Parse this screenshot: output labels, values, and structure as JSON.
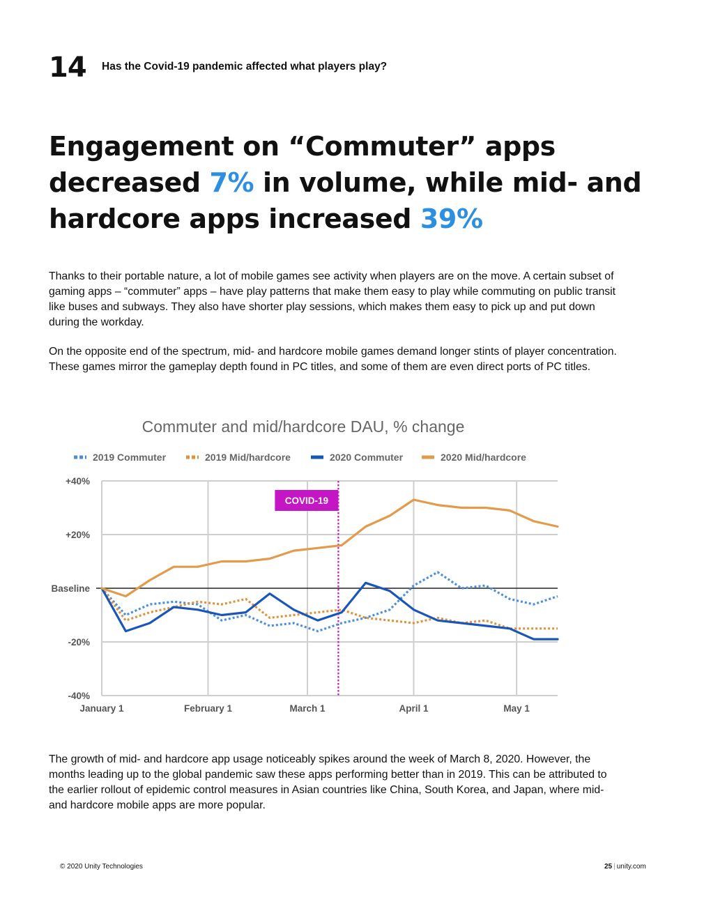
{
  "header": {
    "section_number": "14",
    "section_title": "Has the Covid-19 pandemic affected what players play?"
  },
  "headline": {
    "part1": "Engagement on “Commuter” apps decreased ",
    "highlight1": "7%",
    "part2": " in volume, while mid- and hardcore apps increased ",
    "highlight2": "39%",
    "highlight_color": "#2d8fe0"
  },
  "body": {
    "paragraph1": "Thanks to their portable nature, a lot of mobile games see activity when players are on the move. A certain subset of gaming apps – “commuter” apps – have play patterns that make them easy to play while commuting on public transit like buses and subways. They also have shorter play sessions, which makes them easy to pick up and put down during the workday.",
    "paragraph2": "On the opposite end of the spectrum, mid- and hardcore mobile games demand longer stints of player concentration. These games mirror the gameplay depth found in PC titles, and some of them are even direct ports of PC titles.",
    "paragraph3": "The growth of mid- and hardcore app usage noticeably spikes around the week of March 8, 2020. However, the months leading up to the global pandemic saw these apps performing better than in 2019. This can be attributed to the earlier rollout of epidemic control measures in Asian countries like China, South Korea, and Japan, where mid- and hardcore mobile apps are more popular."
  },
  "chart_data": {
    "type": "line",
    "title": "Commuter and mid/hardcore DAU, % change",
    "xlabel": "",
    "ylabel": "",
    "x": [
      0,
      1,
      2,
      3,
      4,
      5,
      6,
      7,
      8,
      9,
      10,
      11,
      12,
      13,
      14,
      15,
      16,
      17,
      18,
      19
    ],
    "x_unit": "week (starting January 1, 2020)",
    "xlim": [
      0,
      19
    ],
    "xticks": [
      {
        "x": 0,
        "label": "January 1"
      },
      {
        "x": 4.43,
        "label": "February 1"
      },
      {
        "x": 8.57,
        "label": "March 1"
      },
      {
        "x": 13,
        "label": "April 1"
      },
      {
        "x": 17.29,
        "label": "May 1"
      }
    ],
    "ylim": [
      -40,
      40
    ],
    "yticks": [
      {
        "y": 40,
        "label": "+40%"
      },
      {
        "y": 20,
        "label": "+20%"
      },
      {
        "y": 0,
        "label": "Baseline"
      },
      {
        "y": -20,
        "label": "-20%"
      },
      {
        "y": -40,
        "label": "-40%"
      }
    ],
    "grid": true,
    "legend_position": "top",
    "series": [
      {
        "name": "2019 Commuter",
        "color": "#4a8fde",
        "dash": "dotted",
        "values": [
          0,
          -10,
          -6,
          -5,
          -6,
          -12,
          -10,
          -14,
          -13,
          -16,
          -13,
          -11,
          -8,
          1,
          6,
          0,
          1,
          -4,
          -6,
          -3
        ]
      },
      {
        "name": "2019 Mid/hardcore",
        "color": "#e0923a",
        "dash": "dotted",
        "values": [
          0,
          -12,
          -9,
          -7,
          -5,
          -6,
          -4,
          -11,
          -10,
          -9,
          -8,
          -11,
          -12,
          -13,
          -11,
          -13,
          -12,
          -15,
          -15,
          -15
        ]
      },
      {
        "name": "2020 Commuter",
        "color": "#1a56b8",
        "dash": "solid",
        "values": [
          0,
          -16,
          -13,
          -7,
          -8,
          -10,
          -9,
          -2,
          -8,
          -12,
          -9,
          2,
          -1,
          -8,
          -12,
          -13,
          -14,
          -15,
          -19,
          -19
        ]
      },
      {
        "name": "2020 Mid/hardcore",
        "color": "#e29a4b",
        "dash": "solid",
        "values": [
          0,
          -3,
          3,
          8,
          8,
          10,
          10,
          11,
          14,
          15,
          16,
          23,
          27,
          33,
          31,
          30,
          30,
          29,
          25,
          23
        ]
      }
    ],
    "annotations": [
      {
        "label": "COVID-19",
        "x": 9.86,
        "type": "vertical-line",
        "color": "#c416c4"
      }
    ]
  },
  "footer": {
    "copyright": "© 2020 Unity Technologies",
    "page_number": "25",
    "separator": "|",
    "site": "unity.com"
  }
}
